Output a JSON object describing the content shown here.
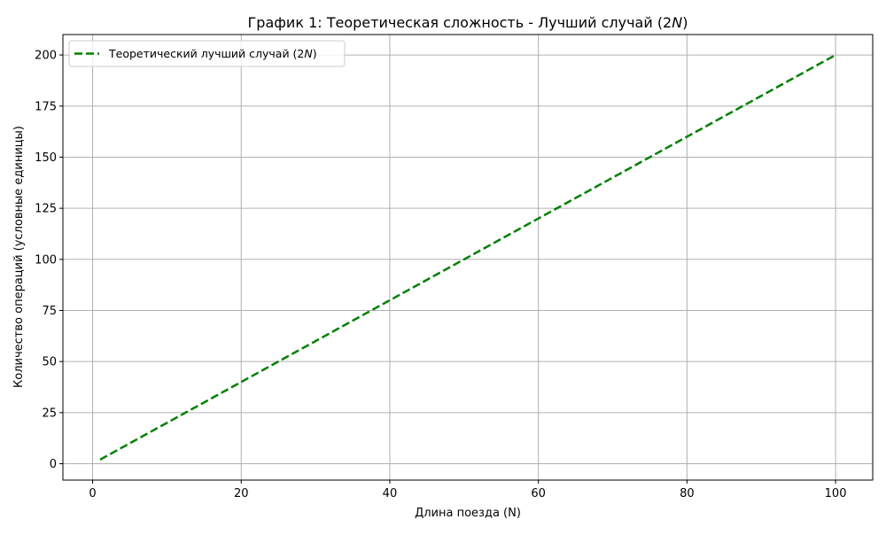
{
  "chart_data": {
    "type": "line",
    "title": "График 1: Теоретическая сложность - Лучший случай (2N)",
    "title_parts": {
      "prefix": "График 1: Теоретическая сложность - Лучший случай (2",
      "italic": "N",
      "suffix": ")"
    },
    "xlabel": "Длина поезда (N)",
    "ylabel": "Количество операций (условные единицы)",
    "xlim": [
      -4,
      105
    ],
    "ylim": [
      -8,
      210
    ],
    "xticks": [
      0,
      20,
      40,
      60,
      80,
      100
    ],
    "yticks": [
      0,
      25,
      50,
      75,
      100,
      125,
      150,
      175,
      200
    ],
    "grid": true,
    "legend_position": "top-left",
    "series": [
      {
        "name": "Теоретический лучший случай (2N)",
        "name_parts": {
          "prefix": "Теоретический лучший случай (2",
          "italic": "N",
          "suffix": ")"
        },
        "color": "#008000",
        "linestyle": "dashed",
        "x": [
          1,
          100
        ],
        "y": [
          2,
          200
        ]
      }
    ]
  }
}
